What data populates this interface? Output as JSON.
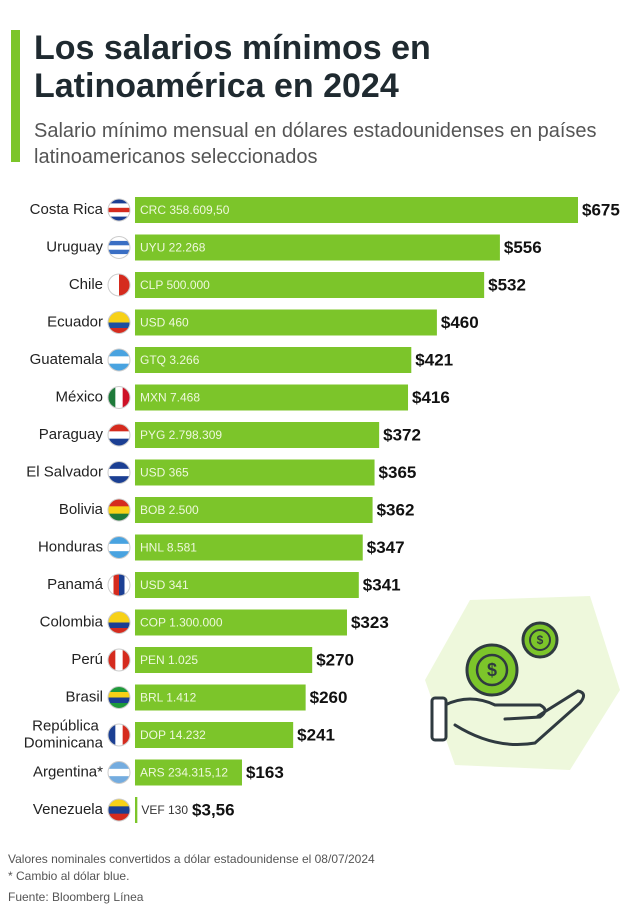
{
  "chart_data": {
    "type": "bar",
    "orientation": "horizontal",
    "title": "Los salarios mínimos en Latinoamérica en 2024",
    "subtitle": "Salario mínimo mensual en dólares estadounidenses en países latinoamericanos seleccionados",
    "categories": [
      "Costa Rica",
      "Uruguay",
      "Chile",
      "Ecuador",
      "Guatemala",
      "México",
      "Paraguay",
      "El Salvador",
      "Bolivia",
      "Honduras",
      "Panamá",
      "Colombia",
      "Perú",
      "Brasil",
      "República Dominicana",
      "Argentina*",
      "Venezuela"
    ],
    "values": [
      675,
      556,
      532,
      460,
      421,
      416,
      372,
      365,
      362,
      347,
      341,
      323,
      270,
      260,
      241,
      163,
      3.56
    ],
    "value_labels": [
      "$675",
      "$556",
      "$532",
      "$460",
      "$421",
      "$416",
      "$372",
      "$365",
      "$362",
      "$347",
      "$341",
      "$323",
      "$270",
      "$260",
      "$241",
      "$163",
      "$3,56"
    ],
    "local_currency": [
      "CRC 358.609,50",
      "UYU 22.268",
      "CLP 500.000",
      "USD 460",
      "GTQ 3.266",
      "MXN 7.468",
      "PYG 2.798.309",
      "USD 365",
      "BOB 2.500",
      "HNL 8.581",
      "USD 341",
      "COP 1.300.000",
      "PEN 1.025",
      "BRL 1.412",
      "DOP 14.232",
      "ARS 234.315,12",
      "VEF 130"
    ],
    "color": "#7cc52a",
    "notes": [
      "Valores nominales convertidos a dólar estadounidense el 08/07/2024",
      "* Cambio al dólar blue.",
      "Fuente: Bloomberg Línea"
    ]
  }
}
